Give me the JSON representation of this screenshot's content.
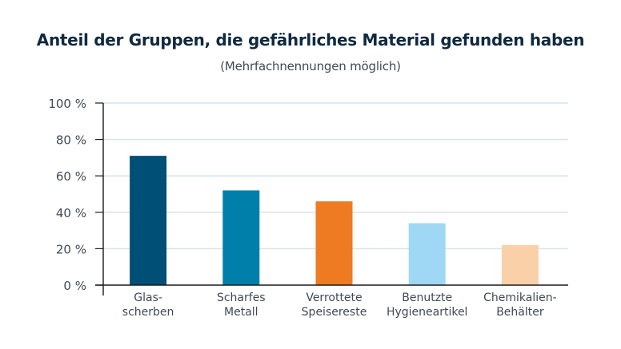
{
  "chart_data": {
    "type": "bar",
    "title": "Anteil der Gruppen, die gefährliches Material gefunden haben",
    "subtitle": "(Mehrfachnennungen möglich)",
    "xlabel": "",
    "ylabel": "",
    "ylim": [
      0,
      100
    ],
    "yticks": [
      0,
      20,
      40,
      60,
      80,
      100
    ],
    "ytick_labels": [
      "0 %",
      "20 %",
      "40 %",
      "60 %",
      "80 %",
      "100 %"
    ],
    "grid": true,
    "legend": "none",
    "categories": [
      [
        "Glas-",
        "scherben"
      ],
      [
        "Scharfes",
        "Metall"
      ],
      [
        "Verrottete",
        "Speisereste"
      ],
      [
        "Benutzte",
        "Hygieneartikel"
      ],
      [
        "Chemikalien-",
        "Behälter"
      ]
    ],
    "values": [
      71,
      52,
      46,
      34,
      22
    ],
    "colors": [
      "#004f76",
      "#007fab",
      "#ee7a22",
      "#9fd8f5",
      "#fad0a8"
    ],
    "grid_color": "#d6e3ec",
    "axis_color": "#1a1a1a"
  }
}
